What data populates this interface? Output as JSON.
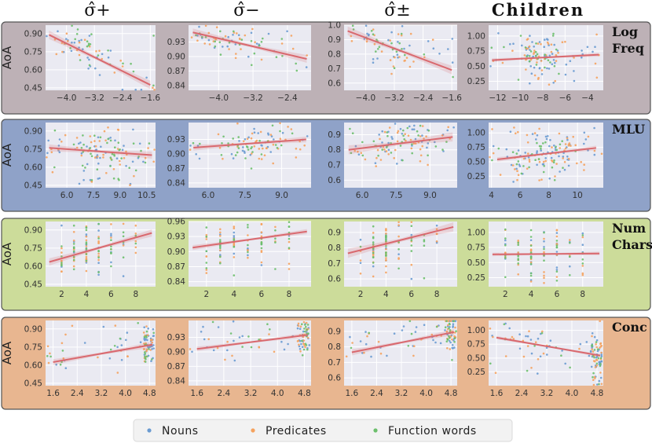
{
  "figure": {
    "column_titles": [
      "σ̂+",
      "σ̂−",
      "σ̂±",
      "Children"
    ],
    "row_labels": [
      [
        "Log",
        "Freq"
      ],
      [
        "MLU"
      ],
      [
        "Num",
        "Chars"
      ],
      [
        "Conc"
      ]
    ],
    "ylabel": "AoA",
    "row_colors": [
      "#bdb1b6",
      "#8fa2c8",
      "#ccdc9a",
      "#e8b690"
    ],
    "panel_bg": "#eaeaf2",
    "regression_color": "#d9696f",
    "series_colors": {
      "Nouns": "#6a9bd1",
      "Predicates": "#f5a25e",
      "Function words": "#6cbf6c"
    }
  },
  "legend": {
    "items": [
      {
        "label": "Nouns",
        "color": "#6a9bd1"
      },
      {
        "label": "Predicates",
        "color": "#f5a25e"
      },
      {
        "label": "Function words",
        "color": "#6cbf6c"
      }
    ]
  },
  "chart_data": [
    {
      "type": "scatter",
      "row": 0,
      "col": 0,
      "title": "σ̂+",
      "ylabel": "AoA",
      "xlabel": "Log Freq",
      "xlim": [
        -4.6,
        -1.45
      ],
      "ylim": [
        0.43,
        0.97
      ],
      "xticks": [
        -4.0,
        -3.2,
        -2.4,
        -1.6
      ],
      "yticks": [
        0.45,
        0.6,
        0.75,
        0.9
      ],
      "trend": {
        "x": [
          -4.5,
          -1.6
        ],
        "y": [
          0.89,
          0.475
        ]
      },
      "band": 0.035,
      "cluster": {
        "x": [
          -4.3,
          -2.9
        ],
        "y": [
          0.7,
          0.93
        ]
      },
      "points": {
        "Nouns": 28,
        "Predicates": 20,
        "Function words": 22
      }
    },
    {
      "type": "scatter",
      "row": 0,
      "col": 1,
      "title": "σ̂−",
      "ylabel": "AoA",
      "xlabel": "Log Freq",
      "xlim": [
        -4.7,
        -1.85
      ],
      "ylim": [
        0.83,
        0.965
      ],
      "xticks": [
        -4.0,
        -3.2,
        -2.4
      ],
      "yticks": [
        0.84,
        0.87,
        0.9,
        0.93
      ],
      "trend": {
        "x": [
          -4.6,
          -1.95
        ],
        "y": [
          0.95,
          0.895
        ]
      },
      "band": 0.008,
      "cluster": {
        "x": [
          -4.5,
          -3.0
        ],
        "y": [
          0.92,
          0.955
        ]
      },
      "points": {
        "Nouns": 22,
        "Predicates": 28,
        "Function words": 25
      }
    },
    {
      "type": "scatter",
      "row": 0,
      "col": 2,
      "title": "σ̂±",
      "ylabel": "AoA",
      "xlabel": "Log Freq",
      "xlim": [
        -4.6,
        -1.45
      ],
      "ylim": [
        0.55,
        1.0
      ],
      "xticks": [
        -4.0,
        -3.2,
        -2.4,
        -1.6
      ],
      "yticks": [
        0.6,
        0.7,
        0.8,
        0.9,
        1.0
      ],
      "trend": {
        "x": [
          -4.5,
          -1.6
        ],
        "y": [
          0.96,
          0.69
        ]
      },
      "band": 0.03,
      "cluster": {
        "x": [
          -4.0,
          -2.8
        ],
        "y": [
          0.82,
          0.95
        ]
      },
      "points": {
        "Nouns": 26,
        "Predicates": 24,
        "Function words": 22
      }
    },
    {
      "type": "scatter",
      "row": 0,
      "col": 3,
      "title": "Children",
      "ylabel": "AoA",
      "xlabel": "Log Freq",
      "xlim": [
        -12.8,
        -2.6
      ],
      "ylim": [
        0.1,
        1.18
      ],
      "xticks": [
        -12,
        -10,
        -8,
        -6,
        -4
      ],
      "yticks": [
        0.25,
        0.5,
        0.75,
        1.0
      ],
      "trend": {
        "x": [
          -12.5,
          -3.0
        ],
        "y": [
          0.6,
          0.69
        ]
      },
      "band": 0.03,
      "cluster": {
        "x": [
          -9.5,
          -6.5
        ],
        "y": [
          0.2,
          1.05
        ]
      },
      "points": {
        "Nouns": 60,
        "Predicates": 45,
        "Function words": 25
      }
    },
    {
      "type": "scatter",
      "row": 1,
      "col": 0,
      "title": "σ̂+",
      "ylabel": "AoA",
      "xlabel": "MLU",
      "xlim": [
        4.8,
        11.0
      ],
      "ylim": [
        0.43,
        0.97
      ],
      "xticks": [
        6.0,
        7.5,
        9.0,
        10.5
      ],
      "yticks": [
        0.45,
        0.6,
        0.75,
        0.9
      ],
      "trend": {
        "x": [
          5.0,
          10.8
        ],
        "y": [
          0.76,
          0.7
        ]
      },
      "band": 0.03,
      "cluster": {
        "x": [
          6.5,
          9.0
        ],
        "y": [
          0.45,
          0.93
        ]
      },
      "points": {
        "Nouns": 45,
        "Predicates": 45,
        "Function words": 40
      }
    },
    {
      "type": "scatter",
      "row": 1,
      "col": 1,
      "title": "σ̂−",
      "ylabel": "AoA",
      "xlabel": "MLU",
      "xlim": [
        5.2,
        10.2
      ],
      "ylim": [
        0.83,
        0.965
      ],
      "xticks": [
        6.0,
        7.5,
        9.0
      ],
      "yticks": [
        0.84,
        0.87,
        0.9,
        0.93
      ],
      "trend": {
        "x": [
          5.4,
          10.0
        ],
        "y": [
          0.913,
          0.93
        ]
      },
      "band": 0.006,
      "cluster": {
        "x": [
          6.5,
          9.0
        ],
        "y": [
          0.88,
          0.95
        ]
      },
      "points": {
        "Nouns": 30,
        "Predicates": 40,
        "Function words": 30
      }
    },
    {
      "type": "scatter",
      "row": 1,
      "col": 2,
      "title": "σ̂±",
      "ylabel": "AoA",
      "xlabel": "MLU",
      "xlim": [
        5.2,
        10.2
      ],
      "ylim": [
        0.55,
        0.98
      ],
      "xticks": [
        6.0,
        7.5,
        9.0
      ],
      "yticks": [
        0.6,
        0.7,
        0.8,
        0.9
      ],
      "trend": {
        "x": [
          5.4,
          10.0
        ],
        "y": [
          0.8,
          0.885
        ]
      },
      "band": 0.03,
      "cluster": {
        "x": [
          6.5,
          9.0
        ],
        "y": [
          0.7,
          0.95
        ]
      },
      "points": {
        "Nouns": 35,
        "Predicates": 40,
        "Function words": 35
      }
    },
    {
      "type": "scatter",
      "row": 1,
      "col": 3,
      "title": "Children",
      "ylabel": "AoA",
      "xlabel": "MLU",
      "xlim": [
        3.8,
        11.8
      ],
      "ylim": [
        0.05,
        1.18
      ],
      "xticks": [
        4,
        6,
        8,
        10
      ],
      "yticks": [
        0.25,
        0.5,
        0.75,
        1.0
      ],
      "trend": {
        "x": [
          4.4,
          11.3
        ],
        "y": [
          0.54,
          0.74
        ]
      },
      "band": 0.04,
      "cluster": {
        "x": [
          5.5,
          9.5
        ],
        "y": [
          0.15,
          1.1
        ]
      },
      "points": {
        "Nouns": 60,
        "Predicates": 60,
        "Function words": 30
      }
    },
    {
      "type": "scatter",
      "row": 2,
      "col": 0,
      "title": "σ̂+",
      "ylabel": "AoA",
      "xlabel": "Num Chars",
      "xlim": [
        0.7,
        9.6
      ],
      "ylim": [
        0.43,
        0.97
      ],
      "xticks": [
        2,
        4,
        6,
        8
      ],
      "yticks": [
        0.45,
        0.6,
        0.75,
        0.9
      ],
      "trend": {
        "x": [
          1.0,
          9.3
        ],
        "y": [
          0.635,
          0.875
        ]
      },
      "band": 0.03,
      "xdiscrete": true,
      "cluster": {
        "x": [
          2,
          6
        ],
        "y": [
          0.45,
          0.95
        ]
      },
      "points": {
        "Nouns": 25,
        "Predicates": 45,
        "Function words": 40
      }
    },
    {
      "type": "scatter",
      "row": 2,
      "col": 1,
      "title": "σ̂−",
      "ylabel": "AoA",
      "xlabel": "Num Chars",
      "xlim": [
        0.7,
        9.6
      ],
      "ylim": [
        0.83,
        0.96
      ],
      "xticks": [
        2,
        4,
        6,
        8
      ],
      "yticks": [
        0.84,
        0.87,
        0.9,
        0.93,
        0.96
      ],
      "trend": {
        "x": [
          1.0,
          9.3
        ],
        "y": [
          0.908,
          0.94
        ]
      },
      "band": 0.005,
      "xdiscrete": true,
      "cluster": {
        "x": [
          2,
          6
        ],
        "y": [
          0.85,
          0.96
        ]
      },
      "points": {
        "Nouns": 20,
        "Predicates": 45,
        "Function words": 40
      }
    },
    {
      "type": "scatter",
      "row": 2,
      "col": 2,
      "title": "σ̂±",
      "ylabel": "AoA",
      "xlabel": "Num Chars",
      "xlim": [
        0.7,
        9.6
      ],
      "ylim": [
        0.55,
        0.97
      ],
      "xticks": [
        2,
        4,
        6,
        8
      ],
      "yticks": [
        0.6,
        0.7,
        0.8,
        0.9
      ],
      "trend": {
        "x": [
          1.0,
          9.3
        ],
        "y": [
          0.765,
          0.935
        ]
      },
      "band": 0.03,
      "xdiscrete": true,
      "cluster": {
        "x": [
          2,
          6
        ],
        "y": [
          0.6,
          0.95
        ]
      },
      "points": {
        "Nouns": 20,
        "Predicates": 45,
        "Function words": 40
      }
    },
    {
      "type": "scatter",
      "row": 2,
      "col": 3,
      "title": "Children",
      "ylabel": "AoA",
      "xlabel": "Num Chars",
      "xlim": [
        0.7,
        9.6
      ],
      "ylim": [
        0.1,
        1.18
      ],
      "xticks": [
        2,
        4,
        6,
        8
      ],
      "yticks": [
        0.25,
        0.5,
        0.75,
        1.0
      ],
      "trend": {
        "x": [
          1.0,
          9.3
        ],
        "y": [
          0.635,
          0.65
        ]
      },
      "band": 0.03,
      "xdiscrete": true,
      "cluster": {
        "x": [
          2,
          6
        ],
        "y": [
          0.15,
          1.1
        ]
      },
      "points": {
        "Nouns": 30,
        "Predicates": 50,
        "Function words": 40
      }
    },
    {
      "type": "scatter",
      "row": 3,
      "col": 0,
      "title": "σ̂+",
      "ylabel": "AoA",
      "xlabel": "Conc",
      "xlim": [
        1.35,
        5.0
      ],
      "ylim": [
        0.43,
        0.97
      ],
      "xticks": [
        1.6,
        2.4,
        3.2,
        4.0,
        4.8
      ],
      "yticks": [
        0.45,
        0.6,
        0.75,
        0.9
      ],
      "trend": {
        "x": [
          1.6,
          4.9
        ],
        "y": [
          0.625,
          0.77
        ]
      },
      "band": 0.025,
      "cluster": {
        "x": [
          4.6,
          4.95
        ],
        "y": [
          0.65,
          0.95
        ]
      },
      "points": {
        "Nouns": 45,
        "Predicates": 35,
        "Function words": 25
      }
    },
    {
      "type": "scatter",
      "row": 3,
      "col": 1,
      "title": "σ̂−",
      "ylabel": "AoA",
      "xlabel": "Conc",
      "xlim": [
        1.35,
        5.0
      ],
      "ylim": [
        0.83,
        0.965
      ],
      "xticks": [
        1.6,
        2.4,
        3.2,
        4.0,
        4.8
      ],
      "yticks": [
        0.84,
        0.87,
        0.9,
        0.93
      ],
      "trend": {
        "x": [
          1.6,
          4.9
        ],
        "y": [
          0.906,
          0.935
        ]
      },
      "band": 0.005,
      "cluster": {
        "x": [
          4.6,
          4.95
        ],
        "y": [
          0.9,
          0.96
        ]
      },
      "points": {
        "Nouns": 40,
        "Predicates": 35,
        "Function words": 25
      }
    },
    {
      "type": "scatter",
      "row": 3,
      "col": 2,
      "title": "σ̂±",
      "ylabel": "AoA",
      "xlabel": "Conc",
      "xlim": [
        1.35,
        5.0
      ],
      "ylim": [
        0.55,
        0.97
      ],
      "xticks": [
        1.6,
        2.4,
        3.2,
        4.0,
        4.8
      ],
      "yticks": [
        0.6,
        0.7,
        0.8,
        0.9
      ],
      "trend": {
        "x": [
          1.6,
          4.9
        ],
        "y": [
          0.765,
          0.895
        ]
      },
      "band": 0.02,
      "cluster": {
        "x": [
          4.6,
          4.95
        ],
        "y": [
          0.82,
          0.95
        ]
      },
      "points": {
        "Nouns": 40,
        "Predicates": 35,
        "Function words": 25
      }
    },
    {
      "type": "scatter",
      "row": 3,
      "col": 3,
      "title": "Children",
      "ylabel": "AoA",
      "xlabel": "Conc",
      "xlim": [
        1.35,
        5.0
      ],
      "ylim": [
        0.0,
        1.18
      ],
      "xticks": [
        1.6,
        2.4,
        3.2,
        4.0,
        4.8
      ],
      "yticks": [
        0.25,
        0.5,
        0.75,
        1.0
      ],
      "trend": {
        "x": [
          1.6,
          4.9
        ],
        "y": [
          0.87,
          0.545
        ]
      },
      "band": 0.03,
      "cluster": {
        "x": [
          4.6,
          4.95
        ],
        "y": [
          0.0,
          0.9
        ]
      },
      "points": {
        "Nouns": 55,
        "Predicates": 45,
        "Function words": 25
      }
    }
  ]
}
